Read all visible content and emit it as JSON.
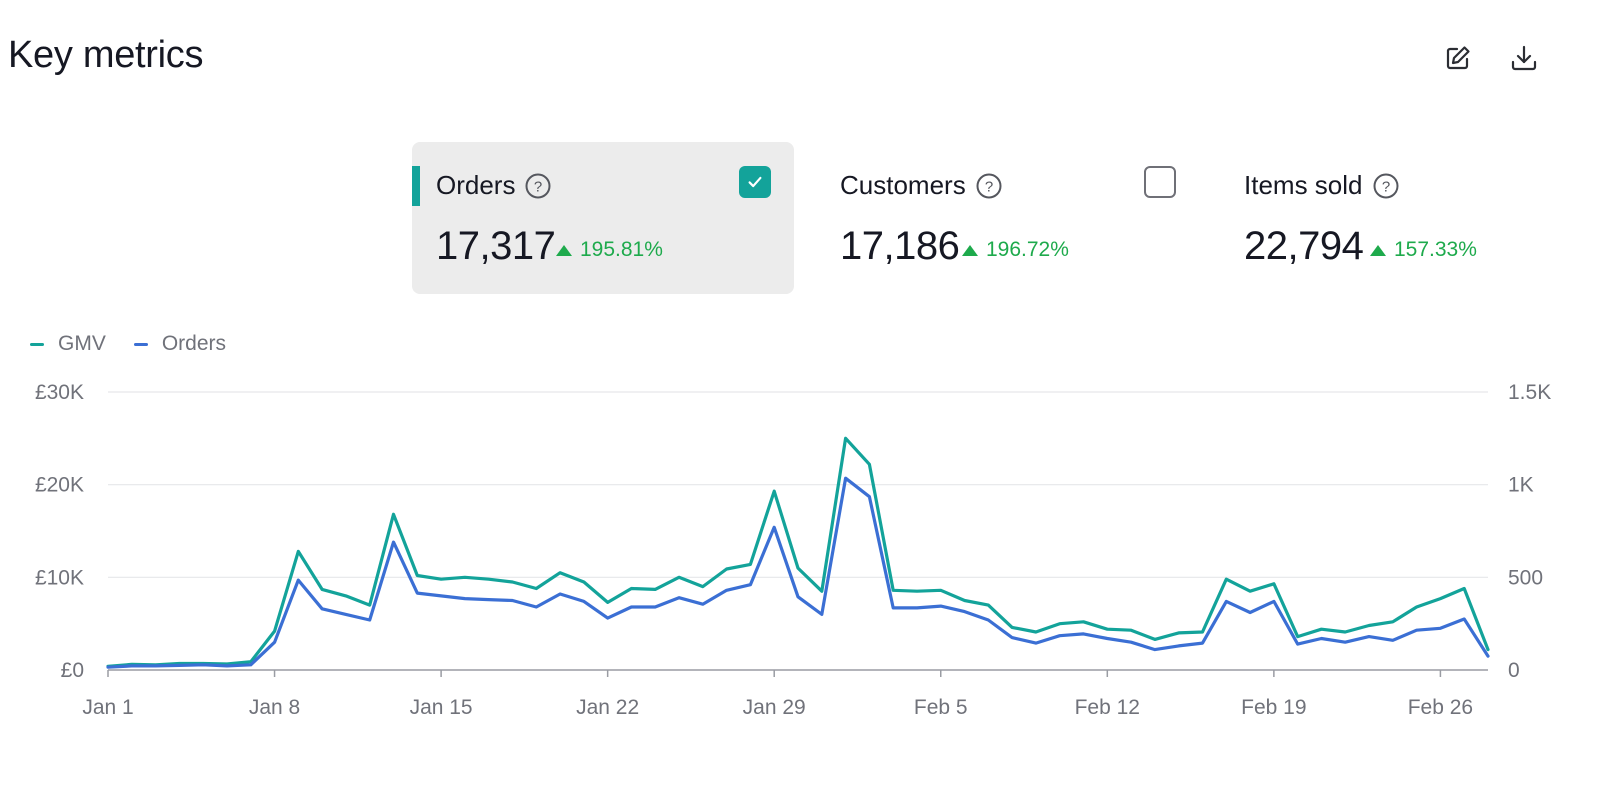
{
  "header": {
    "title": "Key metrics",
    "icons": [
      "edit-icon",
      "download-icon"
    ]
  },
  "metrics": [
    {
      "label": "Orders",
      "value": "17,317",
      "delta": "195.81%",
      "checked": true
    },
    {
      "label": "Customers",
      "value": "17,186",
      "delta": "196.72%",
      "checked": false
    },
    {
      "label": "Items sold",
      "value": "22,794",
      "delta": "157.33%",
      "checked": null
    }
  ],
  "legend": [
    {
      "name": "GMV",
      "color": "#13a39a"
    },
    {
      "name": "Orders",
      "color": "#3b6fd4"
    }
  ],
  "chart_data": {
    "type": "line",
    "title": "",
    "xlabel": "",
    "ylabel": "",
    "x": [
      "Jan 1",
      "Jan 2",
      "Jan 3",
      "Jan 4",
      "Jan 5",
      "Jan 6",
      "Jan 7",
      "Jan 8",
      "Jan 9",
      "Jan 10",
      "Jan 11",
      "Jan 12",
      "Jan 13",
      "Jan 14",
      "Jan 15",
      "Jan 16",
      "Jan 17",
      "Jan 18",
      "Jan 19",
      "Jan 20",
      "Jan 21",
      "Jan 22",
      "Jan 23",
      "Jan 24",
      "Jan 25",
      "Jan 26",
      "Jan 27",
      "Jan 28",
      "Jan 29",
      "Jan 30",
      "Jan 31",
      "Feb 1",
      "Feb 2",
      "Feb 3",
      "Feb 4",
      "Feb 5",
      "Feb 6",
      "Feb 7",
      "Feb 8",
      "Feb 9",
      "Feb 10",
      "Feb 11",
      "Feb 12",
      "Feb 13",
      "Feb 14",
      "Feb 15",
      "Feb 16",
      "Feb 17",
      "Feb 18",
      "Feb 19",
      "Feb 20",
      "Feb 21",
      "Feb 22",
      "Feb 23",
      "Feb 24",
      "Feb 25",
      "Feb 26",
      "Feb 27",
      "Feb 28"
    ],
    "x_ticks": [
      "Jan 1",
      "Jan 8",
      "Jan 15",
      "Jan 22",
      "Jan 29",
      "Feb 5",
      "Feb 12",
      "Feb 19",
      "Feb 26"
    ],
    "y_left": {
      "ticks": [
        "£0",
        "£10K",
        "£20K",
        "£30K"
      ],
      "range": [
        0,
        30000
      ]
    },
    "y_right": {
      "ticks": [
        "0",
        "500",
        "1K",
        "1.5K"
      ],
      "range": [
        0,
        1500
      ]
    },
    "series": [
      {
        "name": "GMV",
        "axis": "left",
        "values": [
          400,
          600,
          550,
          700,
          700,
          650,
          900,
          4200,
          12800,
          8700,
          8000,
          7000,
          16800,
          10200,
          9800,
          10000,
          9800,
          9500,
          8800,
          10500,
          9500,
          7300,
          8800,
          8700,
          10000,
          9000,
          10900,
          11400,
          19300,
          11000,
          8500,
          25000,
          22200,
          8600,
          8500,
          8600,
          7500,
          7000,
          4600,
          4100,
          5000,
          5200,
          4400,
          4300,
          3300,
          4000,
          4100,
          9800,
          8500,
          9300,
          3600,
          4400,
          4100,
          4800,
          5200,
          6800,
          7700,
          8800,
          2200
        ]
      },
      {
        "name": "Orders",
        "axis": "right",
        "values": [
          15,
          22,
          22,
          25,
          28,
          22,
          28,
          150,
          485,
          330,
          300,
          270,
          690,
          415,
          400,
          385,
          380,
          375,
          340,
          410,
          370,
          280,
          340,
          340,
          390,
          355,
          430,
          460,
          770,
          395,
          300,
          1035,
          935,
          335,
          335,
          345,
          315,
          270,
          175,
          145,
          185,
          195,
          170,
          150,
          110,
          130,
          145,
          370,
          310,
          370,
          140,
          170,
          150,
          180,
          160,
          215,
          225,
          275,
          75
        ]
      }
    ]
  }
}
